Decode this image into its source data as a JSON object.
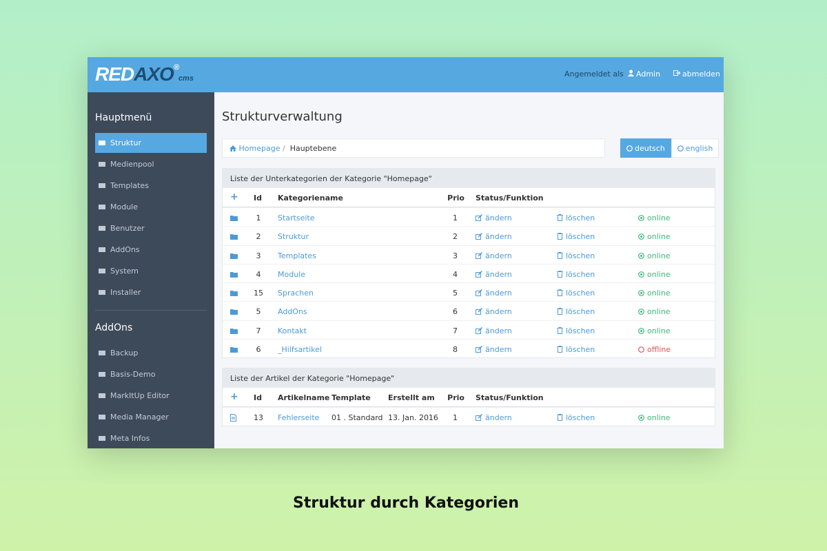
{
  "logo": {
    "red": "RED",
    "axo": "AXO",
    "reg": "®",
    "cms": "cms"
  },
  "header": {
    "logged_in_as": "Angemeldet als",
    "user": "Admin",
    "logout": "abmelden"
  },
  "sidebar": {
    "main_title": "Hauptmenü",
    "main_items": [
      "Struktur",
      "Medienpool",
      "Templates",
      "Module",
      "Benutzer",
      "AddOns",
      "System",
      "Installer"
    ],
    "addons_title": "AddOns",
    "addon_items": [
      "Backup",
      "Basis-Demo",
      "MarkItUp Editor",
      "Media Manager",
      "Meta Infos"
    ]
  },
  "page_title": "Strukturverwaltung",
  "breadcrumb": {
    "home": "Homepage",
    "separator": "/",
    "current": "Hauptebene"
  },
  "languages": [
    "deutsch",
    "english"
  ],
  "categories_table": {
    "caption": "Liste der Unterkategorien der Kategorie \"Homepage\"",
    "headers": [
      "+",
      "Id",
      "Kategoriename",
      "Prio",
      "Status/Funktion"
    ],
    "rows": [
      {
        "id": 1,
        "name": "Startseite",
        "prio": 1,
        "edit": "ändern",
        "delete": "löschen",
        "status": "online",
        "online": true
      },
      {
        "id": 2,
        "name": "Struktur",
        "prio": 2,
        "edit": "ändern",
        "delete": "löschen",
        "status": "online",
        "online": true
      },
      {
        "id": 3,
        "name": "Templates",
        "prio": 3,
        "edit": "ändern",
        "delete": "löschen",
        "status": "online",
        "online": true
      },
      {
        "id": 4,
        "name": "Module",
        "prio": 4,
        "edit": "ändern",
        "delete": "löschen",
        "status": "online",
        "online": true
      },
      {
        "id": 15,
        "name": "Sprachen",
        "prio": 5,
        "edit": "ändern",
        "delete": "löschen",
        "status": "online",
        "online": true
      },
      {
        "id": 5,
        "name": "AddOns",
        "prio": 6,
        "edit": "ändern",
        "delete": "löschen",
        "status": "online",
        "online": true
      },
      {
        "id": 7,
        "name": "Kontakt",
        "prio": 7,
        "edit": "ändern",
        "delete": "löschen",
        "status": "online",
        "online": true
      },
      {
        "id": 6,
        "name": "_Hilfsartikel",
        "prio": 8,
        "edit": "ändern",
        "delete": "löschen",
        "status": "offline",
        "online": false
      }
    ]
  },
  "articles_table": {
    "caption": "Liste der Artikel der Kategorie \"Homepage\"",
    "headers": [
      "+",
      "Id",
      "Artikelname",
      "Template",
      "Erstellt am",
      "Prio",
      "Status/Funktion"
    ],
    "rows": [
      {
        "id": 13,
        "name": "Fehlerseite",
        "template": "01 . Standard",
        "created": "13. Jan. 2016",
        "prio": 1,
        "edit": "ändern",
        "delete": "löschen",
        "status": "online",
        "online": true
      }
    ]
  },
  "caption": "Struktur durch Kategorien"
}
